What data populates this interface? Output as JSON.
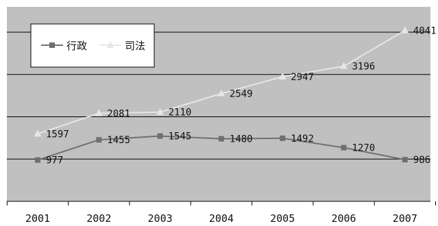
{
  "chart_data": {
    "type": "line",
    "title": "",
    "xlabel": "",
    "ylabel": "",
    "categories": [
      "2001",
      "2002",
      "2003",
      "2004",
      "2005",
      "2006",
      "2007"
    ],
    "ylim": [
      0,
      4600
    ],
    "y_gridlines": [
      1000,
      2000,
      3000,
      4000
    ],
    "grid": true,
    "legend_position": "top-left",
    "plot_background": "#c0c0c0",
    "series": [
      {
        "name": "行政",
        "values": [
          977,
          1455,
          1545,
          1480,
          1492,
          1270,
          986
        ],
        "color": "#707070",
        "marker": "square"
      },
      {
        "name": "司法",
        "values": [
          1597,
          2081,
          2110,
          2549,
          2947,
          3196,
          4041
        ],
        "color": "#e6e6e6",
        "marker": "triangle"
      }
    ]
  }
}
